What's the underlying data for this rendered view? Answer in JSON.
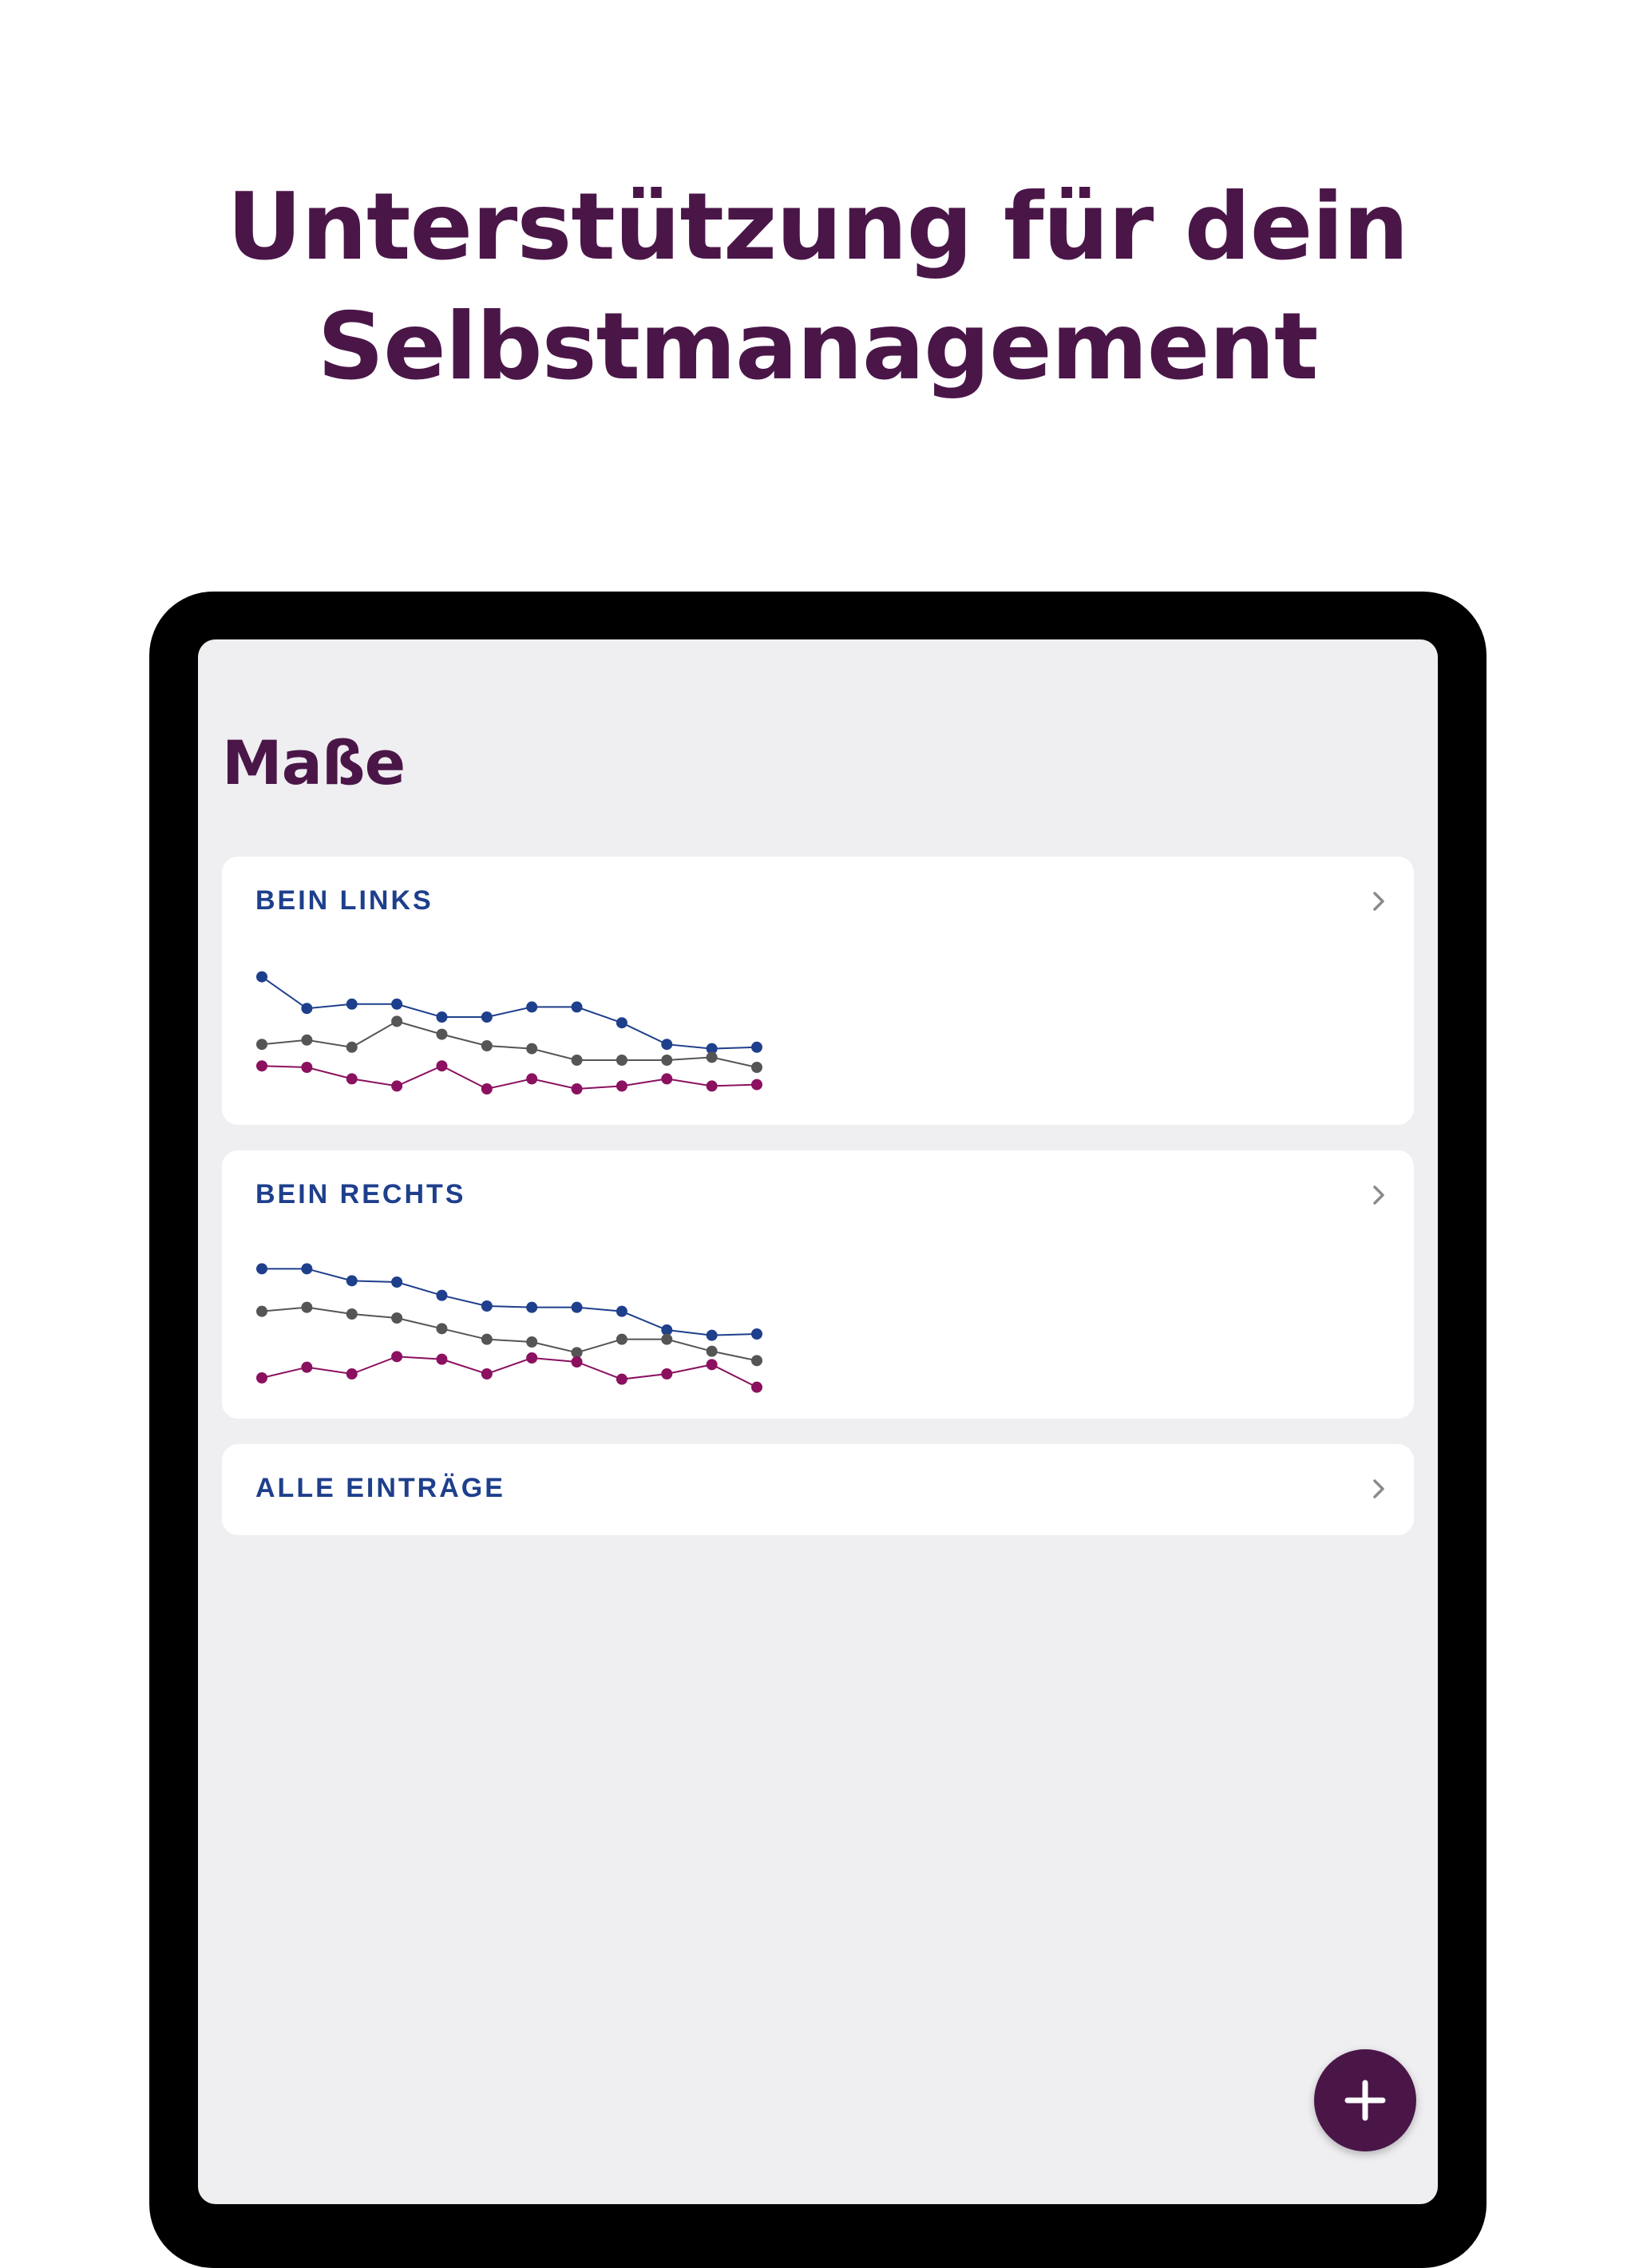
{
  "headline": {
    "line1": "Unterstützung für dein",
    "line2": "Selbstmanagement"
  },
  "screen": {
    "title": "Maße",
    "cards": [
      {
        "label": "BEIN LINKS",
        "icon": "chevron-right-icon"
      },
      {
        "label": "BEIN RECHTS",
        "icon": "chevron-right-icon"
      },
      {
        "label": "ALLE EINTRÄGE",
        "icon": "chevron-right-icon"
      }
    ],
    "fab": {
      "icon": "plus-icon"
    }
  },
  "colors": {
    "brand_purple": "#4a1648",
    "label_blue": "#1e3f8c",
    "series_blue": "#1e3f8c",
    "series_gray": "#555555",
    "series_magenta": "#8b1060"
  },
  "chart_data": [
    {
      "type": "line",
      "title": "",
      "x": [
        1,
        2,
        3,
        4,
        5,
        6,
        7,
        8,
        9,
        10,
        11,
        12
      ],
      "series": [
        {
          "color": "#1e3f8c",
          "values": [
            91.5,
            80.5,
            82,
            82,
            77.5,
            77.5,
            81,
            81,
            75.5,
            68,
            66.5,
            67
          ]
        },
        {
          "color": "#555555",
          "values": [
            68,
            69.5,
            67,
            76,
            71.5,
            67.5,
            66.5,
            62.5,
            62.5,
            62.5,
            63.5,
            60
          ]
        },
        {
          "color": "#8b1060",
          "values": [
            60.5,
            60,
            56,
            53.5,
            60.5,
            52.5,
            56,
            52.5,
            53.5,
            56,
            53.5,
            54
          ]
        }
      ],
      "ylim": [
        50,
        100
      ],
      "grid": false
    },
    {
      "type": "line",
      "title": "",
      "x": [
        1,
        2,
        3,
        4,
        5,
        6,
        7,
        8,
        9,
        10,
        11,
        12
      ],
      "series": [
        {
          "color": "#1e3f8c",
          "values": [
            91.5,
            91.5,
            87,
            86.5,
            81.5,
            77.5,
            77,
            77,
            75.5,
            68.5,
            66.5,
            67
          ]
        },
        {
          "color": "#555555",
          "values": [
            75.5,
            77,
            74.5,
            73,
            69,
            65,
            64,
            60,
            65,
            65,
            60.5,
            57
          ]
        },
        {
          "color": "#8b1060",
          "values": [
            50.5,
            54.5,
            52,
            58.5,
            57.5,
            52,
            58,
            56.5,
            50,
            52,
            55.5,
            47
          ]
        }
      ],
      "ylim": [
        40,
        100
      ],
      "grid": false
    }
  ]
}
